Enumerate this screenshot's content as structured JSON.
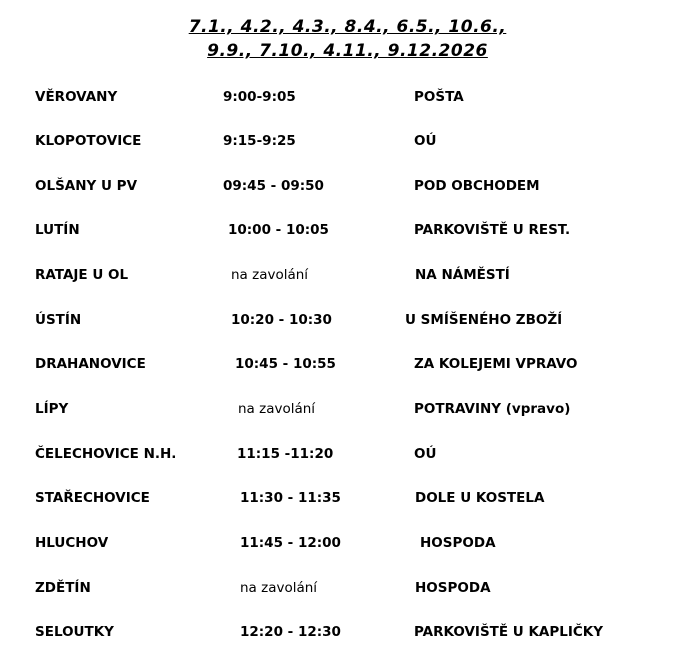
{
  "header": {
    "line1": "7.1., 4.2., 4.3., 8.4., 6.5., 10.6.,",
    "line2": "9.9., 7.10., 4.11., 9.12.2026"
  },
  "stops": [
    {
      "place": "VĚROVANY",
      "time": "9:00-9:05",
      "location": "POŠTA"
    },
    {
      "place": "KLOPOTOVICE",
      "time": "9:15-9:25",
      "location": "OÚ"
    },
    {
      "place": "OLŠANY U PV",
      "time": "09:45 - 09:50",
      "location": "POD OBCHODEM"
    },
    {
      "place": "LUTÍN",
      "time": "10:00 - 10:05",
      "location": "PARKOVIŠTĚ U REST."
    },
    {
      "place": "RATAJE U OL",
      "time": "na zavolání",
      "location": "NA NÁMĚSTÍ"
    },
    {
      "place": "ÚSTÍN",
      "time": "10:20 - 10:30",
      "location": "U SMÍŠENÉHO ZBOŽÍ"
    },
    {
      "place": "DRAHANOVICE",
      "time": "10:45 - 10:55",
      "location": "ZA KOLEJEMI VPRAVO"
    },
    {
      "place": "LÍPY",
      "time": "na zavolání",
      "location": "POTRAVINY (vpravo)"
    },
    {
      "place": "ČELECHOVICE N.H.",
      "time": "11:15 -11:20",
      "location": "OÚ"
    },
    {
      "place": "STAŘECHOVICE",
      "time": "11:30 - 11:35",
      "location": "DOLE U KOSTELA"
    },
    {
      "place": "HLUCHOV",
      "time": "11:45 - 12:00",
      "location": "HOSPODA"
    },
    {
      "place": "ZDĚTÍN",
      "time": "na zavolání",
      "location": "HOSPODA"
    },
    {
      "place": "SELOUTKY",
      "time": "12:20 - 12:30",
      "location": "PARKOVIŠTĚ U KAPLIČKY"
    }
  ]
}
